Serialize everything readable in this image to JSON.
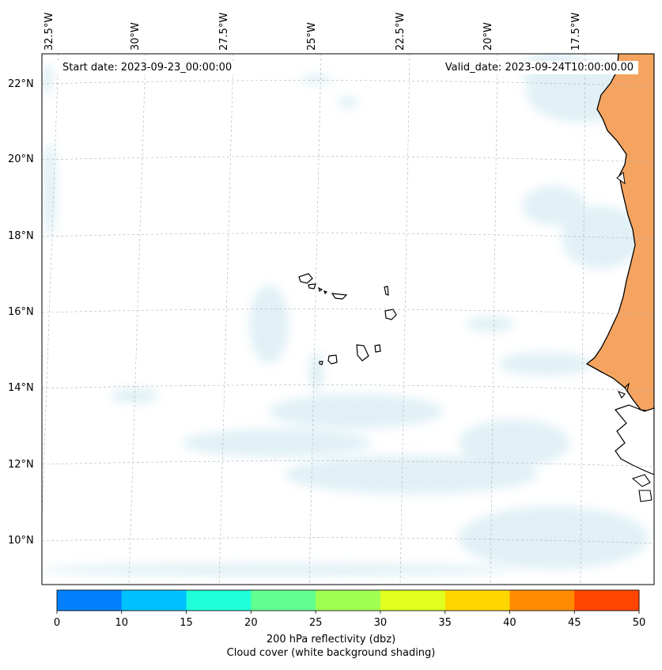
{
  "map": {
    "start_label": "Start date: 2023-09-23_00:00:00",
    "valid_label": "Valid_date: 2023-09-24T10:00:00.00",
    "lon_ticks": [
      "32.5°W",
      "30°W",
      "27.5°W",
      "25°W",
      "22.5°W",
      "20°W",
      "17.5°W"
    ],
    "lat_ticks": [
      "22°N",
      "20°N",
      "18°N",
      "16°N",
      "14°N",
      "12°N",
      "10°N"
    ],
    "extent": {
      "lon_min": -32.7,
      "lon_max": -15.4,
      "lat_min": 9.0,
      "lat_max": 22.8
    },
    "land_color": "#f4a460",
    "cloud_color": "#a9d6e5"
  },
  "colorbar": {
    "ticks": [
      "0",
      "10",
      "15",
      "20",
      "25",
      "30",
      "35",
      "40",
      "45",
      "50"
    ],
    "colors": [
      "#0080ff",
      "#00c0ff",
      "#20ffd8",
      "#60ff90",
      "#a0ff50",
      "#e0ff20",
      "#ffd700",
      "#ff8c00",
      "#ff4500"
    ],
    "label": "200 hPa reflectivity (dbz)",
    "sublabel": "Cloud cover (white background shading)"
  }
}
